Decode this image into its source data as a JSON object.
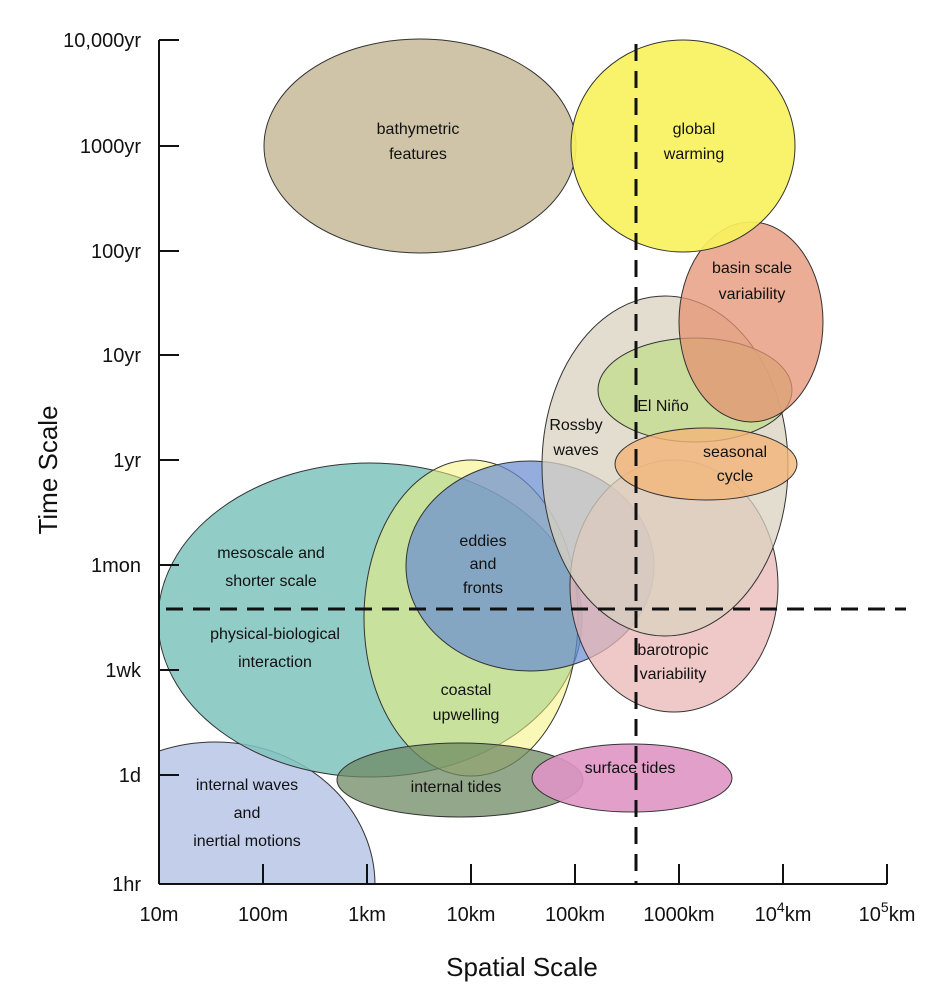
{
  "chart_data": {
    "type": "scatter",
    "title": "",
    "xlabel": "Spatial Scale",
    "ylabel": "Time Scale",
    "x_scale": "log",
    "y_scale": "categorical-log",
    "x_ticks": [
      "10m",
      "100m",
      "1km",
      "10km",
      "100km",
      "1000km",
      "10^4km",
      "10^5km"
    ],
    "y_ticks": [
      "10,000yr",
      "1000yr",
      "100yr",
      "10yr",
      "1yr",
      "1mon",
      "1wk",
      "1d",
      "1hr"
    ],
    "x_tick_parts": [
      {
        "base": "10m",
        "sup": "",
        "unit": ""
      },
      {
        "base": "100m",
        "sup": "",
        "unit": ""
      },
      {
        "base": "1km",
        "sup": "",
        "unit": ""
      },
      {
        "base": "10km",
        "sup": "",
        "unit": ""
      },
      {
        "base": "100km",
        "sup": "",
        "unit": ""
      },
      {
        "base": "1000km",
        "sup": "",
        "unit": ""
      },
      {
        "base": "10",
        "sup": "4",
        "unit": "km"
      },
      {
        "base": "10",
        "sup": "5",
        "unit": "km"
      }
    ],
    "reference_lines": [
      {
        "orientation": "vertical",
        "x": "400km",
        "style": "dashed"
      },
      {
        "orientation": "horizontal",
        "y": "~2wk",
        "style": "dashed"
      }
    ],
    "series": [
      {
        "key": "internal_waves",
        "lines": [
          "internal waves",
          "and",
          "inertial motions"
        ],
        "color": "#b7c6e6",
        "opacity": 0.85
      },
      {
        "key": "mesoscale",
        "lines": [
          "mesoscale and",
          "shorter scale"
        ],
        "color": "#7fc3bd",
        "opacity": 0.85
      },
      {
        "key": "physical_biological",
        "lines": [
          "physical-biological",
          "interaction"
        ],
        "color": "#7fc3bd",
        "opacity": 0
      },
      {
        "key": "coastal_upwelling",
        "lines": [
          "coastal",
          "upwelling"
        ],
        "color": "#f4f27a",
        "opacity": 0.55
      },
      {
        "key": "eddies_fronts",
        "lines": [
          "eddies",
          "and",
          "fronts"
        ],
        "color": "#6a8fd1",
        "opacity": 0.72
      },
      {
        "key": "internal_tides",
        "lines": [
          "internal tides"
        ],
        "color": "#6f8a63",
        "opacity": 0.75
      },
      {
        "key": "surface_tides",
        "lines": [
          "surface tides"
        ],
        "color": "#df95c4",
        "opacity": 0.9
      },
      {
        "key": "barotropic",
        "lines": [
          "barotropic",
          "variability"
        ],
        "color": "#eab7b5",
        "opacity": 0.75
      },
      {
        "key": "rossby",
        "lines": [
          "Rossby",
          "waves"
        ],
        "color": "#d9d1c0",
        "opacity": 0.75
      },
      {
        "key": "el_nino",
        "lines": [
          "El Niño"
        ],
        "color": "#c7dd94",
        "opacity": 0.85
      },
      {
        "key": "seasonal",
        "lines": [
          "seasonal",
          "cycle"
        ],
        "color": "#f2b578",
        "opacity": 0.8
      },
      {
        "key": "basin",
        "lines": [
          "basin scale",
          "variability"
        ],
        "color": "#e49272",
        "opacity": 0.75
      },
      {
        "key": "bathymetric",
        "lines": [
          "bathymetric",
          "features"
        ],
        "color": "#cfc4a8",
        "opacity": 1
      },
      {
        "key": "global_warming",
        "lines": [
          "global",
          "warming"
        ],
        "color": "#f8f15e",
        "opacity": 0.92
      }
    ]
  }
}
